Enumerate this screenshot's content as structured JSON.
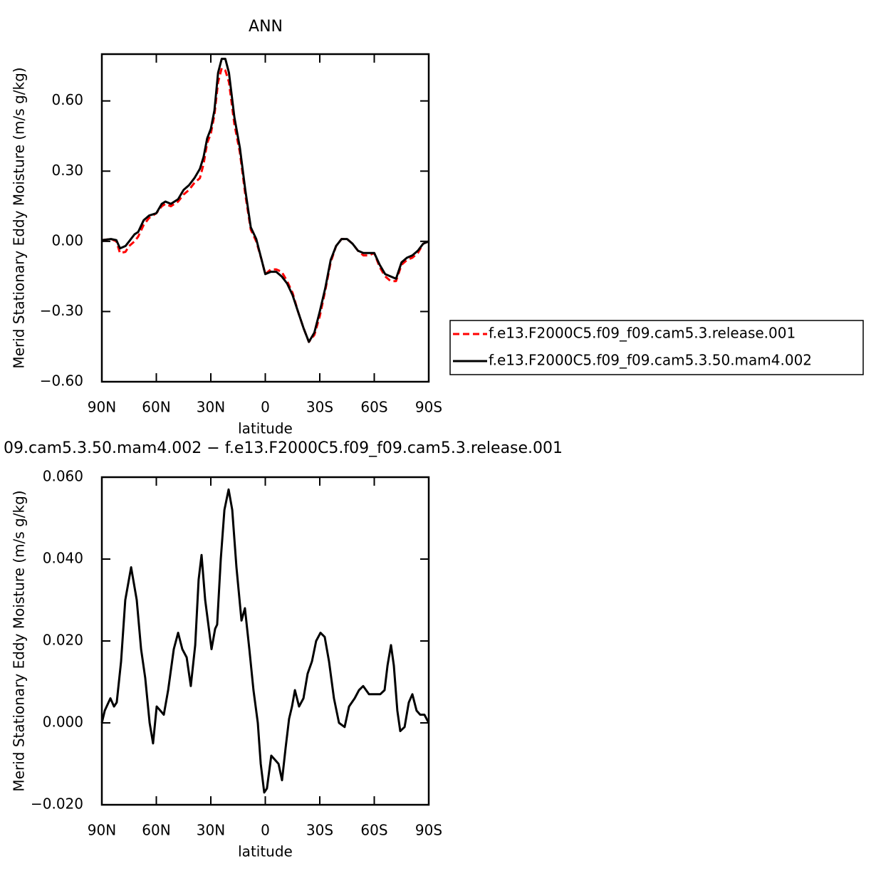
{
  "chart_data": [
    {
      "type": "line",
      "title": "ANN",
      "xlabel": "latitude",
      "ylabel": "Merid Stationary Eddy Moisture (m/s g/kg)",
      "x": [
        90,
        85,
        82,
        80,
        77,
        75,
        72,
        70,
        67,
        64,
        60,
        57,
        55,
        52,
        48,
        45,
        42,
        39,
        36,
        34,
        32,
        30,
        28,
        26,
        24,
        22,
        20,
        17,
        14,
        11,
        8,
        5,
        2,
        0,
        -3,
        -6,
        -9,
        -12,
        -15,
        -18,
        -21,
        -24,
        -27,
        -30,
        -33,
        -36,
        -39,
        -42,
        -45,
        -48,
        -51,
        -54,
        -57,
        -60,
        -63,
        -66,
        -69,
        -72,
        -75,
        -78,
        -81,
        -84,
        -87,
        -90
      ],
      "series": [
        {
          "name": "f.e13.F2000C5.f09_f09.cam5.3.release.001",
          "color": "#ff0000",
          "linestyle": "dashed",
          "values": [
            0.005,
            0.01,
            0.0,
            -0.05,
            -0.045,
            -0.02,
            0.0,
            0.02,
            0.07,
            0.1,
            0.12,
            0.15,
            0.16,
            0.15,
            0.17,
            0.2,
            0.22,
            0.25,
            0.27,
            0.33,
            0.42,
            0.46,
            0.54,
            0.68,
            0.74,
            0.73,
            0.68,
            0.5,
            0.38,
            0.2,
            0.05,
            0.0,
            -0.08,
            -0.14,
            -0.12,
            -0.12,
            -0.13,
            -0.17,
            -0.22,
            -0.3,
            -0.37,
            -0.43,
            -0.4,
            -0.32,
            -0.21,
            -0.09,
            -0.02,
            0.01,
            0.01,
            -0.01,
            -0.04,
            -0.06,
            -0.06,
            -0.05,
            -0.11,
            -0.15,
            -0.17,
            -0.17,
            -0.1,
            -0.08,
            -0.07,
            -0.05,
            -0.01,
            0.0
          ]
        },
        {
          "name": "f.e13.F2000C5.f09_f09.cam5.3.50.mam4.002",
          "color": "#000000",
          "linestyle": "solid",
          "values": [
            0.005,
            0.01,
            0.005,
            -0.03,
            -0.02,
            0.0,
            0.03,
            0.04,
            0.09,
            0.11,
            0.12,
            0.16,
            0.17,
            0.16,
            0.18,
            0.22,
            0.24,
            0.27,
            0.31,
            0.36,
            0.44,
            0.48,
            0.56,
            0.72,
            0.78,
            0.78,
            0.72,
            0.53,
            0.4,
            0.22,
            0.06,
            0.01,
            -0.08,
            -0.14,
            -0.13,
            -0.13,
            -0.15,
            -0.18,
            -0.23,
            -0.3,
            -0.37,
            -0.43,
            -0.39,
            -0.3,
            -0.2,
            -0.08,
            -0.02,
            0.01,
            0.01,
            -0.01,
            -0.04,
            -0.05,
            -0.05,
            -0.05,
            -0.1,
            -0.14,
            -0.15,
            -0.16,
            -0.09,
            -0.07,
            -0.06,
            -0.04,
            -0.01,
            0.0
          ]
        }
      ],
      "xlim": [
        90,
        -90
      ],
      "xticks": [
        {
          "value": 90,
          "label": "90N"
        },
        {
          "value": 60,
          "label": "60N"
        },
        {
          "value": 30,
          "label": "30N"
        },
        0,
        {
          "value": -30,
          "label": "30S"
        },
        {
          "value": -60,
          "label": "60S"
        },
        {
          "value": -90,
          "label": "90S"
        }
      ],
      "ylim": [
        -0.6,
        0.8
      ],
      "yticks": [
        {
          "value": -0.6,
          "label": "−0.60"
        },
        {
          "value": -0.3,
          "label": "−0.30"
        },
        {
          "value": 0,
          "label": "0.00"
        },
        {
          "value": 0.3,
          "label": "0.30"
        },
        {
          "value": 0.6,
          "label": "0.60"
        }
      ]
    },
    {
      "type": "line",
      "title": "09.cam5.3.50.mam4.002 − f.e13.F2000C5.f09_f09.cam5.3.release.001",
      "xlabel": "latitude",
      "ylabel": "Merid Stationary Eddy Moisture (m/s g/kg)",
      "x": [
        90,
        88.4,
        85.3,
        83.3,
        81.8,
        79.4,
        77.1,
        73.9,
        70.8,
        68.4,
        66.1,
        63.7,
        61.8,
        59.8,
        57.8,
        55.9,
        53.5,
        50.4,
        48,
        45.7,
        43.3,
        41,
        38.6,
        36.7,
        35.1,
        33.1,
        29.6,
        27.6,
        26.5,
        24.5,
        22.5,
        20.2,
        18.2,
        15.9,
        13.1,
        11.2,
        8.8,
        6.5,
        4.1,
        2.5,
        0.6,
        -0.9,
        -3.3,
        -5.3,
        -7.3,
        -9.2,
        -11.2,
        -13.1,
        -14.7,
        -16.3,
        -18.6,
        -21,
        -23.3,
        -25.7,
        -28,
        -30.4,
        -32.7,
        -35.1,
        -37.8,
        -40.6,
        -43.7,
        -46.1,
        -49.2,
        -51.6,
        -53.9,
        -57.1,
        -60.2,
        -63.3,
        -65.7,
        -67.3,
        -69.2,
        -70.8,
        -72.7,
        -74.3,
        -76.7,
        -79,
        -81,
        -83.3,
        -85.3,
        -87.6,
        -90
      ],
      "series": [
        {
          "color": "#000000",
          "linestyle": "solid",
          "values": [
            0.0,
            0.003,
            0.006,
            0.004,
            0.005,
            0.015,
            0.03,
            0.038,
            0.03,
            0.018,
            0.011,
            0.0,
            -0.005,
            0.004,
            0.003,
            0.002,
            0.008,
            0.018,
            0.022,
            0.018,
            0.016,
            0.009,
            0.019,
            0.035,
            0.041,
            0.03,
            0.018,
            0.023,
            0.024,
            0.04,
            0.052,
            0.057,
            0.052,
            0.038,
            0.025,
            0.028,
            0.018,
            0.008,
            0.0,
            -0.01,
            -0.017,
            -0.016,
            -0.008,
            -0.009,
            -0.01,
            -0.014,
            -0.006,
            0.001,
            0.004,
            0.008,
            0.004,
            0.006,
            0.012,
            0.015,
            0.02,
            0.022,
            0.021,
            0.015,
            0.006,
            0.0,
            -0.001,
            0.004,
            0.006,
            0.008,
            0.009,
            0.007,
            0.007,
            0.007,
            0.008,
            0.014,
            0.019,
            0.014,
            0.003,
            -0.002,
            -0.001,
            0.005,
            0.007,
            0.003,
            0.002,
            0.002,
            0.0
          ]
        }
      ],
      "xlim": [
        90,
        -90
      ],
      "xticks": [
        {
          "value": 90,
          "label": "90N"
        },
        {
          "value": 60,
          "label": "60N"
        },
        {
          "value": 30,
          "label": "30N"
        },
        0,
        {
          "value": -30,
          "label": "30S"
        },
        {
          "value": -60,
          "label": "60S"
        },
        {
          "value": -90,
          "label": "90S"
        }
      ],
      "ylim": [
        -0.02,
        0.06
      ],
      "yticks": [
        {
          "value": -0.02,
          "label": "−0.020"
        },
        {
          "value": 0,
          "label": "0.000"
        },
        {
          "value": 0.02,
          "label": "0.020"
        },
        {
          "value": 0.04,
          "label": "0.040"
        },
        {
          "value": 0.06,
          "label": "0.060"
        }
      ]
    }
  ]
}
